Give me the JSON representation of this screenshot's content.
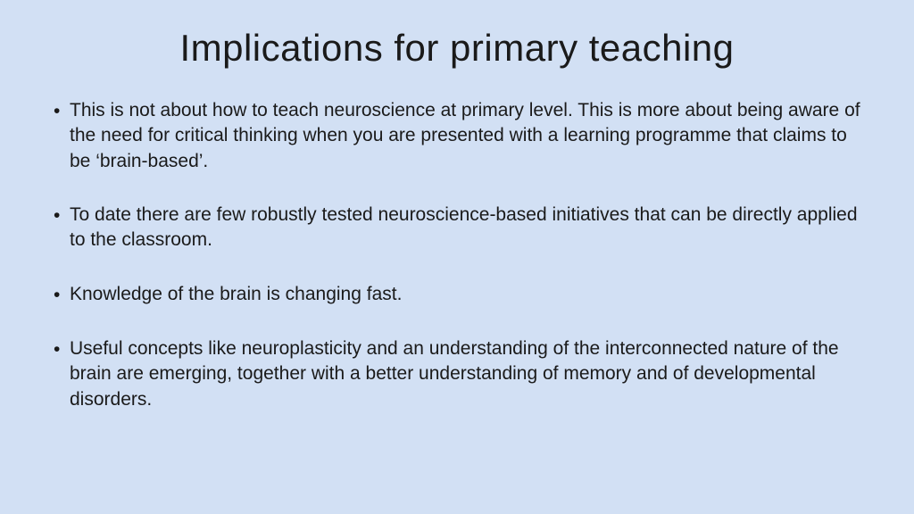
{
  "slide": {
    "background_color": "#d2e0f4",
    "text_color": "#1a1a1a",
    "title": "Implications for primary teaching",
    "title_fontsize": 42,
    "body_fontsize": 21,
    "bullet_marker": "•",
    "bullets": [
      "This is not about how to teach neuroscience at primary level. This is more about being aware of the need for critical thinking when you are presented with a learning programme that claims to be ‘brain-based’.",
      "To date there are few robustly tested neuroscience-based initiatives that can be directly applied to the classroom.",
      "Knowledge of the brain is changing fast.",
      "Useful concepts like neuroplasticity and an understanding of the interconnected nature of the brain are emerging, together with a better understanding of memory and of developmental disorders."
    ]
  }
}
